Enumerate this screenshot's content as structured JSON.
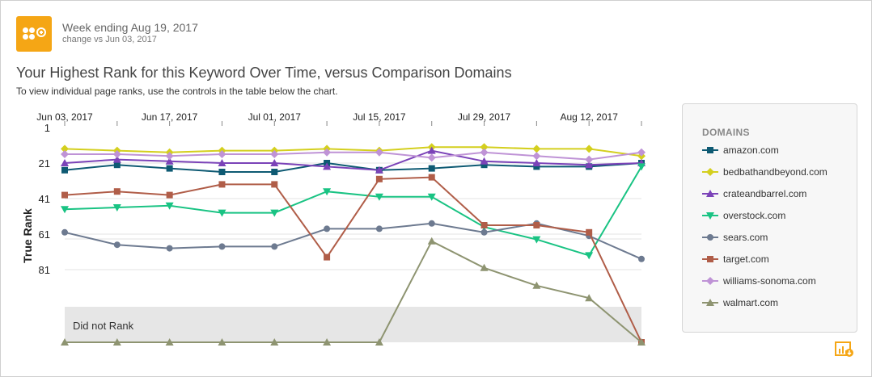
{
  "header": {
    "week_label": "Week ending Aug 19, 2017",
    "change_label": "change vs Jun 03, 2017",
    "logo_color": "#f5a615"
  },
  "title": "Your Highest Rank for this Keyword Over Time, versus Comparison Domains",
  "subtitle": "To view individual page ranks, use the controls in the table below the chart.",
  "chart_data": {
    "type": "line",
    "title": "Your Highest Rank for this Keyword Over Time, versus Comparison Domains",
    "ylabel": "True Rank",
    "xlabel": "",
    "y_reversed": true,
    "ylim": [
      1,
      101
    ],
    "y_ticks": [
      "1",
      "21",
      "41",
      "61",
      "81"
    ],
    "x_ticks": [
      "Jun 03, 2017",
      "Jun 17, 2017",
      "Jul 01, 2017",
      "Jul 15, 2017",
      "Jul 29, 2017",
      "Aug 12, 2017"
    ],
    "x": [
      "Jun 03",
      "Jun 10",
      "Jun 17",
      "Jun 24",
      "Jul 01",
      "Jul 08",
      "Jul 15",
      "Jul 22",
      "Jul 29",
      "Aug 05",
      "Aug 12",
      "Aug 19"
    ],
    "did_not_rank_label": "Did not Rank",
    "series": [
      {
        "name": "amazon.com",
        "color": "#0e5a73",
        "marker": "square",
        "values": [
          25,
          22,
          24,
          26,
          26,
          21,
          25,
          24,
          22,
          23,
          23,
          21
        ]
      },
      {
        "name": "bedbathandbeyond.com",
        "color": "#d4cf1e",
        "marker": "diamond",
        "values": [
          13,
          14,
          15,
          14,
          14,
          13,
          14,
          12,
          12,
          13,
          13,
          17
        ]
      },
      {
        "name": "crateandbarrel.com",
        "color": "#7b43b8",
        "marker": "triangle-up",
        "values": [
          21,
          19,
          20,
          21,
          21,
          23,
          25,
          14,
          20,
          21,
          22,
          21
        ]
      },
      {
        "name": "overstock.com",
        "color": "#19c383",
        "marker": "triangle-down",
        "values": [
          47,
          46,
          45,
          49,
          49,
          37,
          40,
          40,
          57,
          64,
          73,
          23
        ]
      },
      {
        "name": "sears.com",
        "color": "#6d7a90",
        "marker": "circle",
        "values": [
          60,
          67,
          69,
          68,
          68,
          58,
          58,
          55,
          60,
          55,
          62,
          75
        ]
      },
      {
        "name": "target.com",
        "color": "#b05d48",
        "marker": "square",
        "values": [
          39,
          37,
          39,
          33,
          33,
          74,
          30,
          29,
          56,
          56,
          60,
          "DNR"
        ]
      },
      {
        "name": "williams-sonoma.com",
        "color": "#bf93d6",
        "marker": "diamond",
        "values": [
          16,
          16,
          17,
          16,
          16,
          15,
          15,
          18,
          15,
          17,
          19,
          15
        ]
      },
      {
        "name": "walmart.com",
        "color": "#8e9471",
        "marker": "triangle-up",
        "values": [
          "DNR",
          "DNR",
          "DNR",
          "DNR",
          "DNR",
          "DNR",
          "DNR",
          65,
          80,
          90,
          97,
          "DNR"
        ]
      }
    ]
  },
  "legend": {
    "title": "DOMAINS"
  }
}
